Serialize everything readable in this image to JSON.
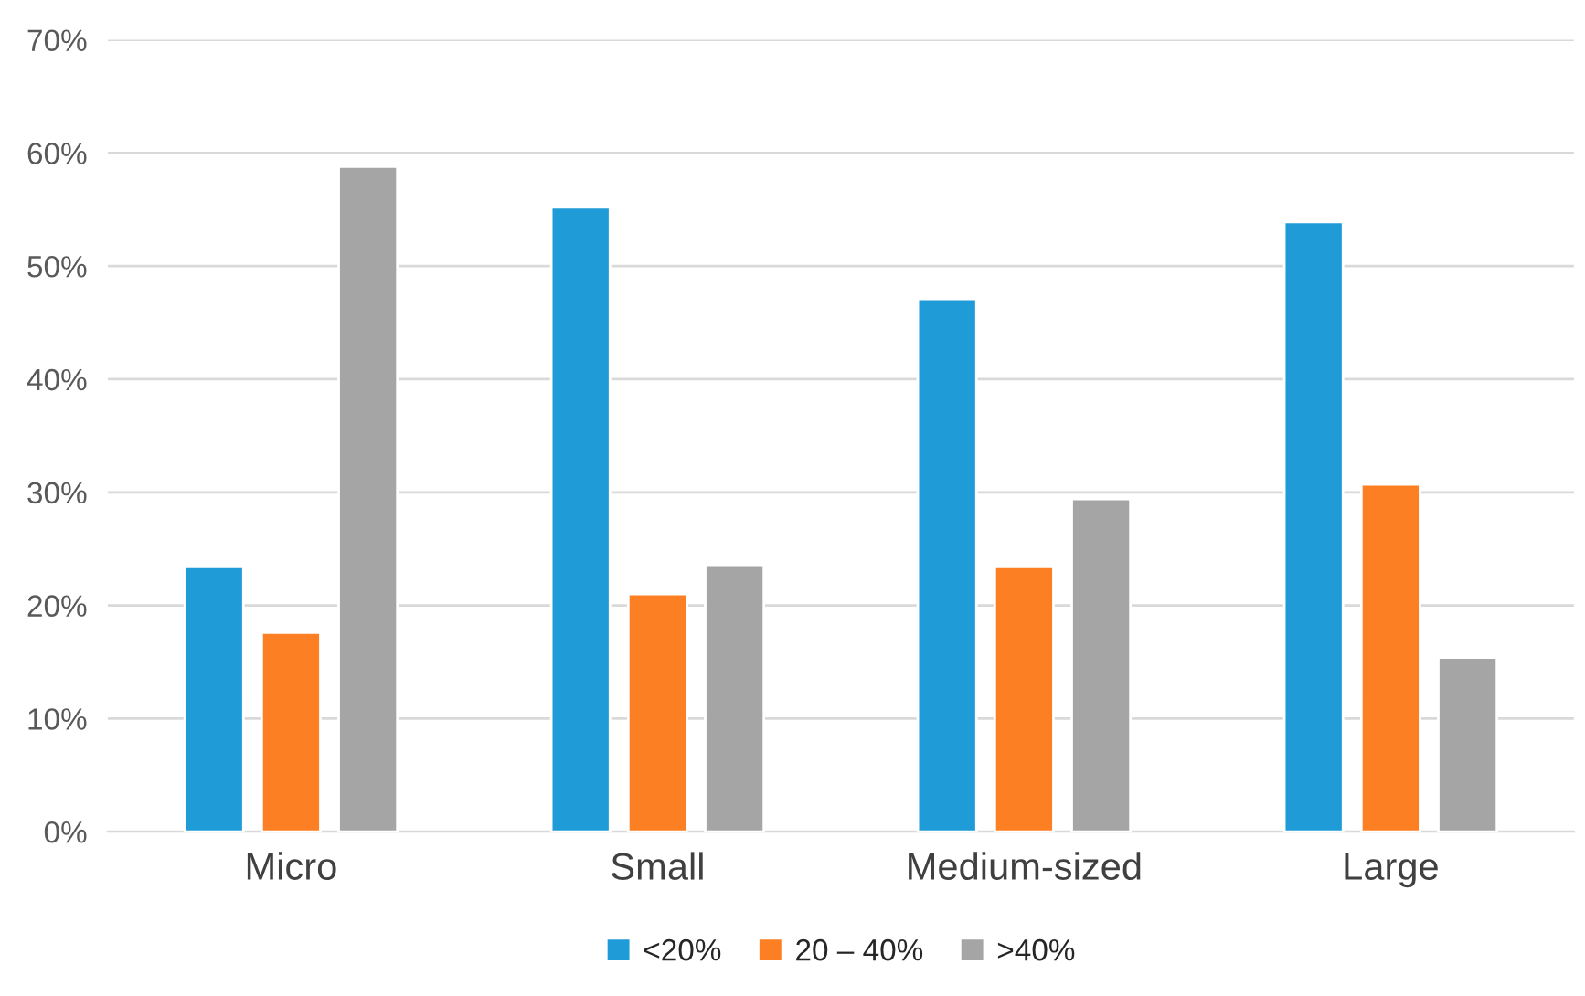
{
  "chart_data": {
    "type": "bar",
    "categories": [
      "Micro",
      "Small",
      "Medium-sized",
      "Large"
    ],
    "series": [
      {
        "name": "<20%",
        "color": "#1f9bd7",
        "values": [
          23.4,
          55.2,
          47.1,
          53.9
        ]
      },
      {
        "name": "20 – 40%",
        "color": "#fd7f23",
        "values": [
          17.6,
          21.0,
          23.4,
          30.7
        ]
      },
      {
        "name": ">40%",
        "color": "#a5a5a5",
        "values": [
          58.8,
          23.6,
          29.4,
          15.4
        ]
      }
    ],
    "ylim": [
      0,
      70
    ],
    "yticks": [
      {
        "value": 0,
        "label": "0%"
      },
      {
        "value": 10,
        "label": "10%"
      },
      {
        "value": 20,
        "label": "20%"
      },
      {
        "value": 30,
        "label": "30%"
      },
      {
        "value": 40,
        "label": "40%"
      },
      {
        "value": 50,
        "label": "50%"
      },
      {
        "value": 60,
        "label": "60%"
      },
      {
        "value": 70,
        "label": "70%"
      }
    ],
    "grid": "y",
    "legend": "bottom"
  }
}
